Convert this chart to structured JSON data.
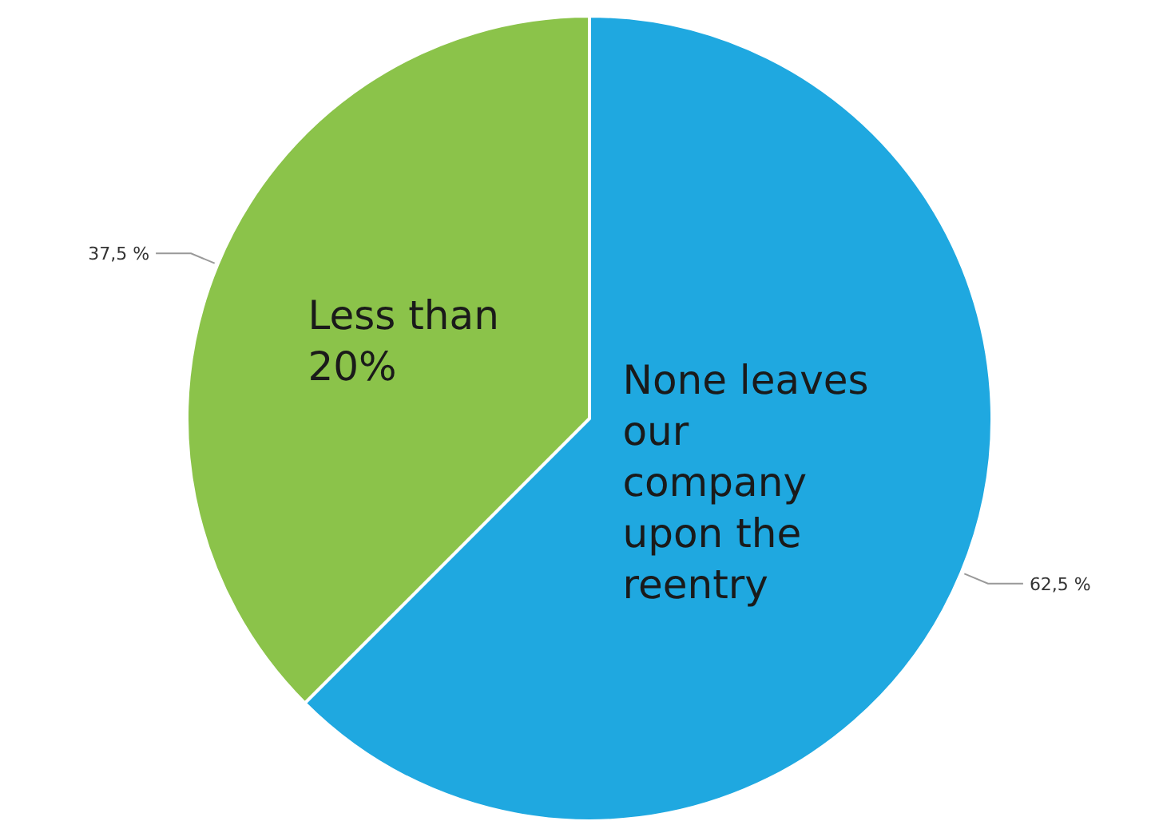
{
  "chart_data": {
    "type": "pie",
    "categories": [
      "None leaves our company upon the reentry",
      "Less than 20%"
    ],
    "values": [
      62.5,
      37.5
    ],
    "colors": [
      "#1fa8e0",
      "#8bc34a"
    ],
    "value_labels": [
      "62,5 %",
      "37,5 %"
    ]
  }
}
